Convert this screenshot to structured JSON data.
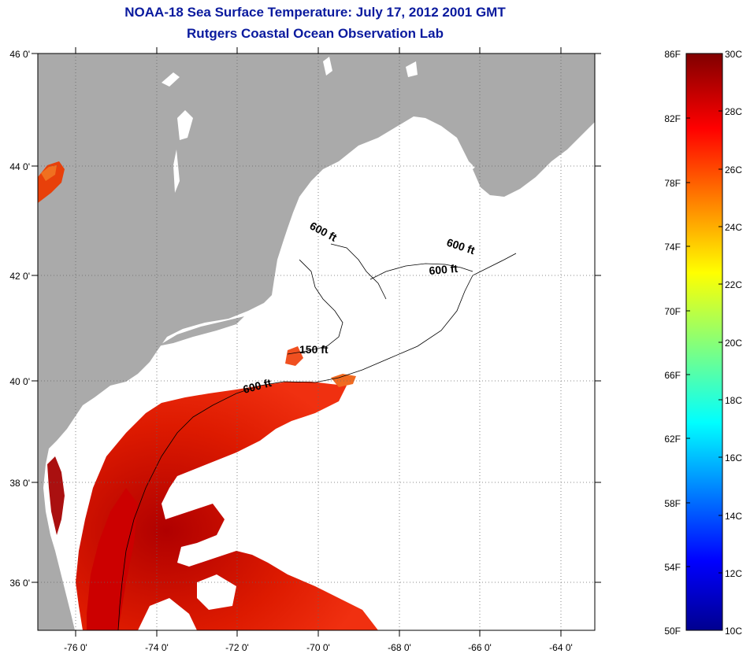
{
  "title": "NOAA-18 Sea Surface Temperature:  July 17, 2012 2001 GMT",
  "subtitle": "Rutgers Coastal Ocean Observation Lab",
  "map": {
    "lat_labels": [
      "46 0'",
      "44 0'",
      "42 0'",
      "40 0'",
      "38 0'",
      "36 0'"
    ],
    "lon_labels": [
      "-76 0'",
      "-74 0'",
      "-72 0'",
      "-70 0'",
      "-68 0'",
      "-66 0'",
      "-64 0'"
    ],
    "contour_labels": [
      "600 ft",
      "600 ft",
      "600 ft",
      "150 ft",
      "600 ft"
    ],
    "land_color": "#aaaaaa",
    "water_color": "#ffffff"
  },
  "colorbar": {
    "f_labels": [
      "86F",
      "82F",
      "78F",
      "74F",
      "70F",
      "66F",
      "62F",
      "58F",
      "54F",
      "50F"
    ],
    "c_labels": [
      "30C",
      "28C",
      "26C",
      "24C",
      "22C",
      "20C",
      "18C",
      "16C",
      "14C",
      "12C",
      "10C"
    ],
    "colormap": "jet"
  }
}
